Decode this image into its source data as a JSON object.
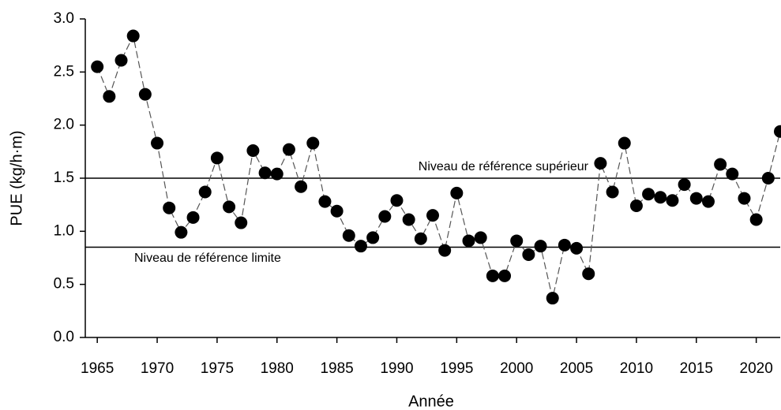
{
  "chart_data": {
    "type": "line",
    "x_label": "Année",
    "y_label": "PUE (kg/h·m)",
    "x": [
      1965,
      1966,
      1967,
      1968,
      1969,
      1970,
      1971,
      1972,
      1973,
      1974,
      1975,
      1976,
      1977,
      1978,
      1979,
      1980,
      1981,
      1982,
      1983,
      1984,
      1985,
      1986,
      1987,
      1988,
      1989,
      1990,
      1991,
      1992,
      1993,
      1994,
      1995,
      1996,
      1997,
      1998,
      1999,
      2000,
      2001,
      2002,
      2003,
      2004,
      2005,
      2006,
      2007,
      2008,
      2009,
      2010,
      2011,
      2012,
      2013,
      2014,
      2015,
      2016,
      2017,
      2018,
      2019,
      2020,
      2021,
      2022
    ],
    "values": [
      2.55,
      2.27,
      2.61,
      2.84,
      2.29,
      1.83,
      1.22,
      0.99,
      1.13,
      1.37,
      1.69,
      1.23,
      1.08,
      1.76,
      1.55,
      1.54,
      1.77,
      1.42,
      1.83,
      1.28,
      1.19,
      0.96,
      0.86,
      0.94,
      1.14,
      1.29,
      1.11,
      0.93,
      1.15,
      0.82,
      1.36,
      0.91,
      0.94,
      0.58,
      0.58,
      0.91,
      0.78,
      0.86,
      0.37,
      0.87,
      0.84,
      0.6,
      1.64,
      1.37,
      1.83,
      1.24,
      1.35,
      1.32,
      1.29,
      1.44,
      1.31,
      1.28,
      1.63,
      1.54,
      1.31,
      1.11,
      1.5,
      1.94
    ],
    "color": "#000000",
    "line_color": "#555555",
    "xlim": [
      1964,
      2022
    ],
    "ylim": [
      0,
      3
    ],
    "xticks": [
      1965,
      1970,
      1975,
      1980,
      1985,
      1990,
      1995,
      2000,
      2005,
      2010,
      2015,
      2020
    ],
    "yticks": [
      {
        "value": 0,
        "label": "0.0"
      },
      0.5,
      {
        "value": 1,
        "label": "1.0"
      },
      1.5,
      {
        "value": 2,
        "label": "2.0"
      },
      2.5,
      {
        "value": 3,
        "label": "3.0"
      }
    ],
    "reference_lines": [
      {
        "value": 1.5,
        "label": "Niveau de référence supérieur"
      },
      {
        "value": 0.85,
        "label": "Niveau de référence limite"
      }
    ]
  }
}
